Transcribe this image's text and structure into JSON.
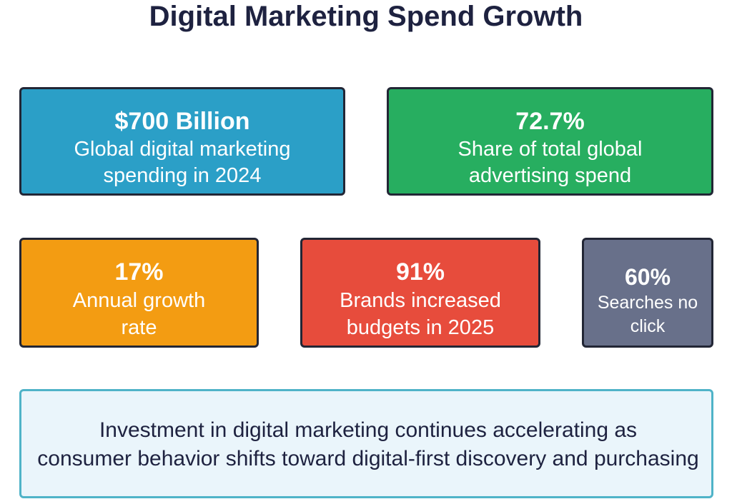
{
  "title": "Digital Marketing Spend Growth",
  "cards": {
    "spend": {
      "value": "$700 Billion",
      "label": "Global digital marketing spending in 2024",
      "color": "#2b9fc7"
    },
    "share": {
      "value": "72.7%",
      "label": "Share of total global advertising spend",
      "color": "#27ae60"
    },
    "growth": {
      "value": "17%",
      "label": "Annual growth rate",
      "color": "#f39c12"
    },
    "brands": {
      "value": "91%",
      "label": "Brands increased budgets in 2025",
      "color": "#e74c3c"
    },
    "searches": {
      "value": "60%",
      "label": "Searches no click",
      "color": "#68708a"
    }
  },
  "summary": {
    "line1": "Investment in digital marketing continues accelerating as",
    "line2": "consumer behavior shifts toward digital-first discovery and purchasing"
  }
}
